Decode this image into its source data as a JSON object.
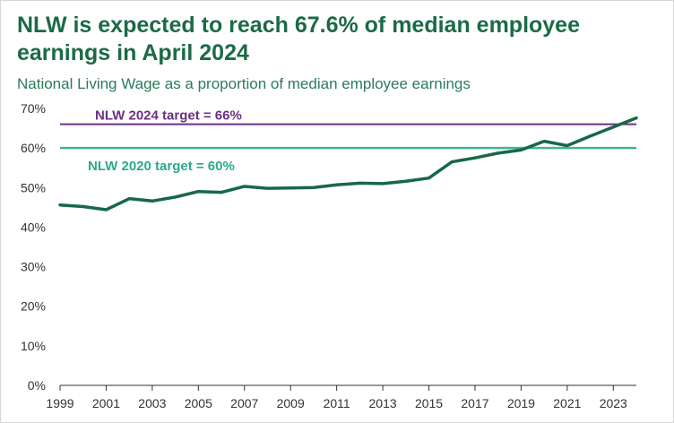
{
  "chart_data": {
    "type": "line",
    "title": "NLW is expected to reach 67.6% of median employee earnings in April 2024",
    "subtitle": "National Living Wage as a proportion of median employee earnings",
    "xlabel": "",
    "ylabel": "",
    "x": [
      1999,
      2000,
      2001,
      2002,
      2003,
      2004,
      2005,
      2006,
      2007,
      2008,
      2009,
      2010,
      2011,
      2012,
      2013,
      2014,
      2015,
      2016,
      2017,
      2018,
      2019,
      2020,
      2021,
      2022,
      2023,
      2024
    ],
    "x_tick_labels": [
      "1999",
      "2001",
      "2003",
      "2005",
      "2007",
      "2009",
      "2011",
      "2013",
      "2015",
      "2017",
      "2019",
      "2021",
      "2023"
    ],
    "y_tick_labels": [
      "0%",
      "10%",
      "20%",
      "30%",
      "40%",
      "50%",
      "60%",
      "70%"
    ],
    "xlim": [
      1999,
      2024
    ],
    "ylim": [
      0,
      70
    ],
    "grid": false,
    "legend": "none",
    "series": [
      {
        "values": [
          45.6,
          45.2,
          44.4,
          47.2,
          46.6,
          47.6,
          49.0,
          48.8,
          50.3,
          49.8,
          49.9,
          50.0,
          50.7,
          51.1,
          51.0,
          51.6,
          52.4,
          56.5,
          57.5,
          58.7,
          59.5,
          61.7,
          60.6,
          63.0,
          65.3,
          67.6
        ],
        "color": "#176847"
      }
    ],
    "reference_lines": [
      {
        "label": "NLW 2024 target = 66%",
        "value": 66,
        "color": "#6b2f86"
      },
      {
        "label": "NLW 2020 target = 60%",
        "value": 60,
        "color": "#3fb39a"
      }
    ],
    "colors": {
      "title": "#1b6b45",
      "subtitle": "#2b7b59",
      "axis": "#333333",
      "label_2020": "#2aa98b"
    }
  }
}
